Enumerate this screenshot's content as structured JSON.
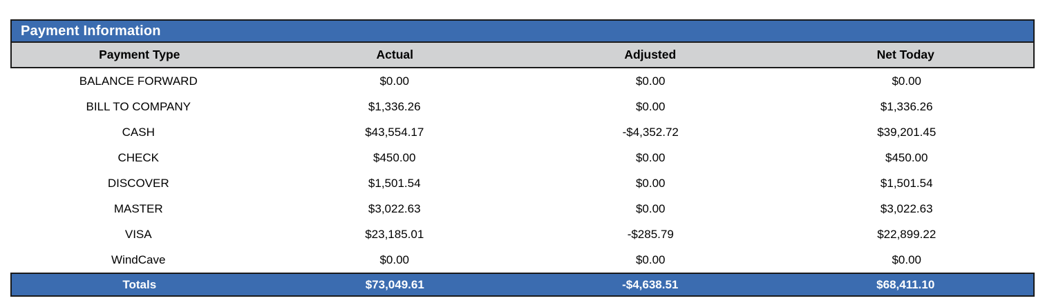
{
  "panel": {
    "title": "Payment Information"
  },
  "table": {
    "columns": [
      "Payment Type",
      "Actual",
      "Adjusted",
      "Net Today"
    ],
    "rows": [
      {
        "type": "BALANCE FORWARD",
        "actual": "$0.00",
        "adjusted": "$0.00",
        "net_today": "$0.00"
      },
      {
        "type": "BILL TO COMPANY",
        "actual": "$1,336.26",
        "adjusted": "$0.00",
        "net_today": "$1,336.26"
      },
      {
        "type": "CASH",
        "actual": "$43,554.17",
        "adjusted": "-$4,352.72",
        "net_today": "$39,201.45"
      },
      {
        "type": "CHECK",
        "actual": "$450.00",
        "adjusted": "$0.00",
        "net_today": "$450.00"
      },
      {
        "type": "DISCOVER",
        "actual": "$1,501.54",
        "adjusted": "$0.00",
        "net_today": "$1,501.54"
      },
      {
        "type": "MASTER",
        "actual": "$3,022.63",
        "adjusted": "$0.00",
        "net_today": "$3,022.63"
      },
      {
        "type": "VISA",
        "actual": "$23,185.01",
        "adjusted": "-$285.79",
        "net_today": "$22,899.22"
      },
      {
        "type": "WindCave",
        "actual": "$0.00",
        "adjusted": "$0.00",
        "net_today": "$0.00"
      }
    ],
    "totals": {
      "label": "Totals",
      "actual": "$73,049.61",
      "adjusted": "-$4,638.51",
      "net_today": "$68,411.10"
    }
  },
  "colors": {
    "accent_blue": "#3B6CB0",
    "header_gray": "#D1D2D3",
    "border_dark": "#1A1A1A"
  }
}
